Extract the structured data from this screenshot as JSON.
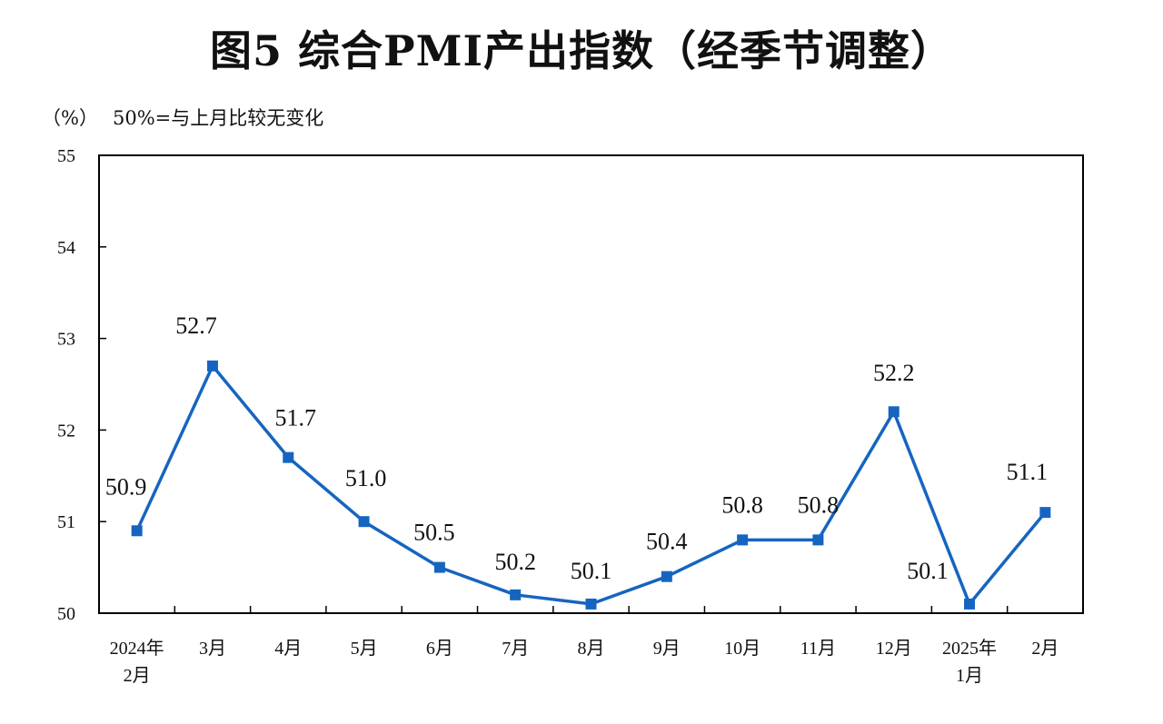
{
  "title": "图5  综合PMI产出指数（经季节调整）",
  "unit_label": "（%）",
  "note": "50%=与上月比较无变化",
  "colors": {
    "series": "#1565C0",
    "axis": "#000000"
  },
  "chart_data": {
    "type": "line",
    "title": "图5  综合PMI产出指数（经季节调整）",
    "ylabel": "（%）",
    "xlabel": "",
    "ylim": [
      50,
      55
    ],
    "yticks": [
      "50",
      "51",
      "52",
      "53",
      "54",
      "55"
    ],
    "categories": [
      [
        "2024年",
        "2月"
      ],
      [
        "3月"
      ],
      [
        "4月"
      ],
      [
        "5月"
      ],
      [
        "6月"
      ],
      [
        "7月"
      ],
      [
        "8月"
      ],
      [
        "9月"
      ],
      [
        "10月"
      ],
      [
        "11月"
      ],
      [
        "12月"
      ],
      [
        "2025年",
        "1月"
      ],
      [
        "2月"
      ]
    ],
    "values": [
      50.9,
      52.7,
      51.7,
      51.0,
      50.5,
      50.2,
      50.1,
      50.4,
      50.8,
      50.8,
      52.2,
      50.1,
      51.1
    ],
    "labels": [
      "50.9",
      "52.7",
      "51.7",
      "51.0",
      "50.5",
      "50.2",
      "50.1",
      "50.4",
      "50.8",
      "50.8",
      "52.2",
      "50.1",
      "51.1"
    ],
    "marker": "square",
    "grid": false,
    "legend": "none"
  }
}
